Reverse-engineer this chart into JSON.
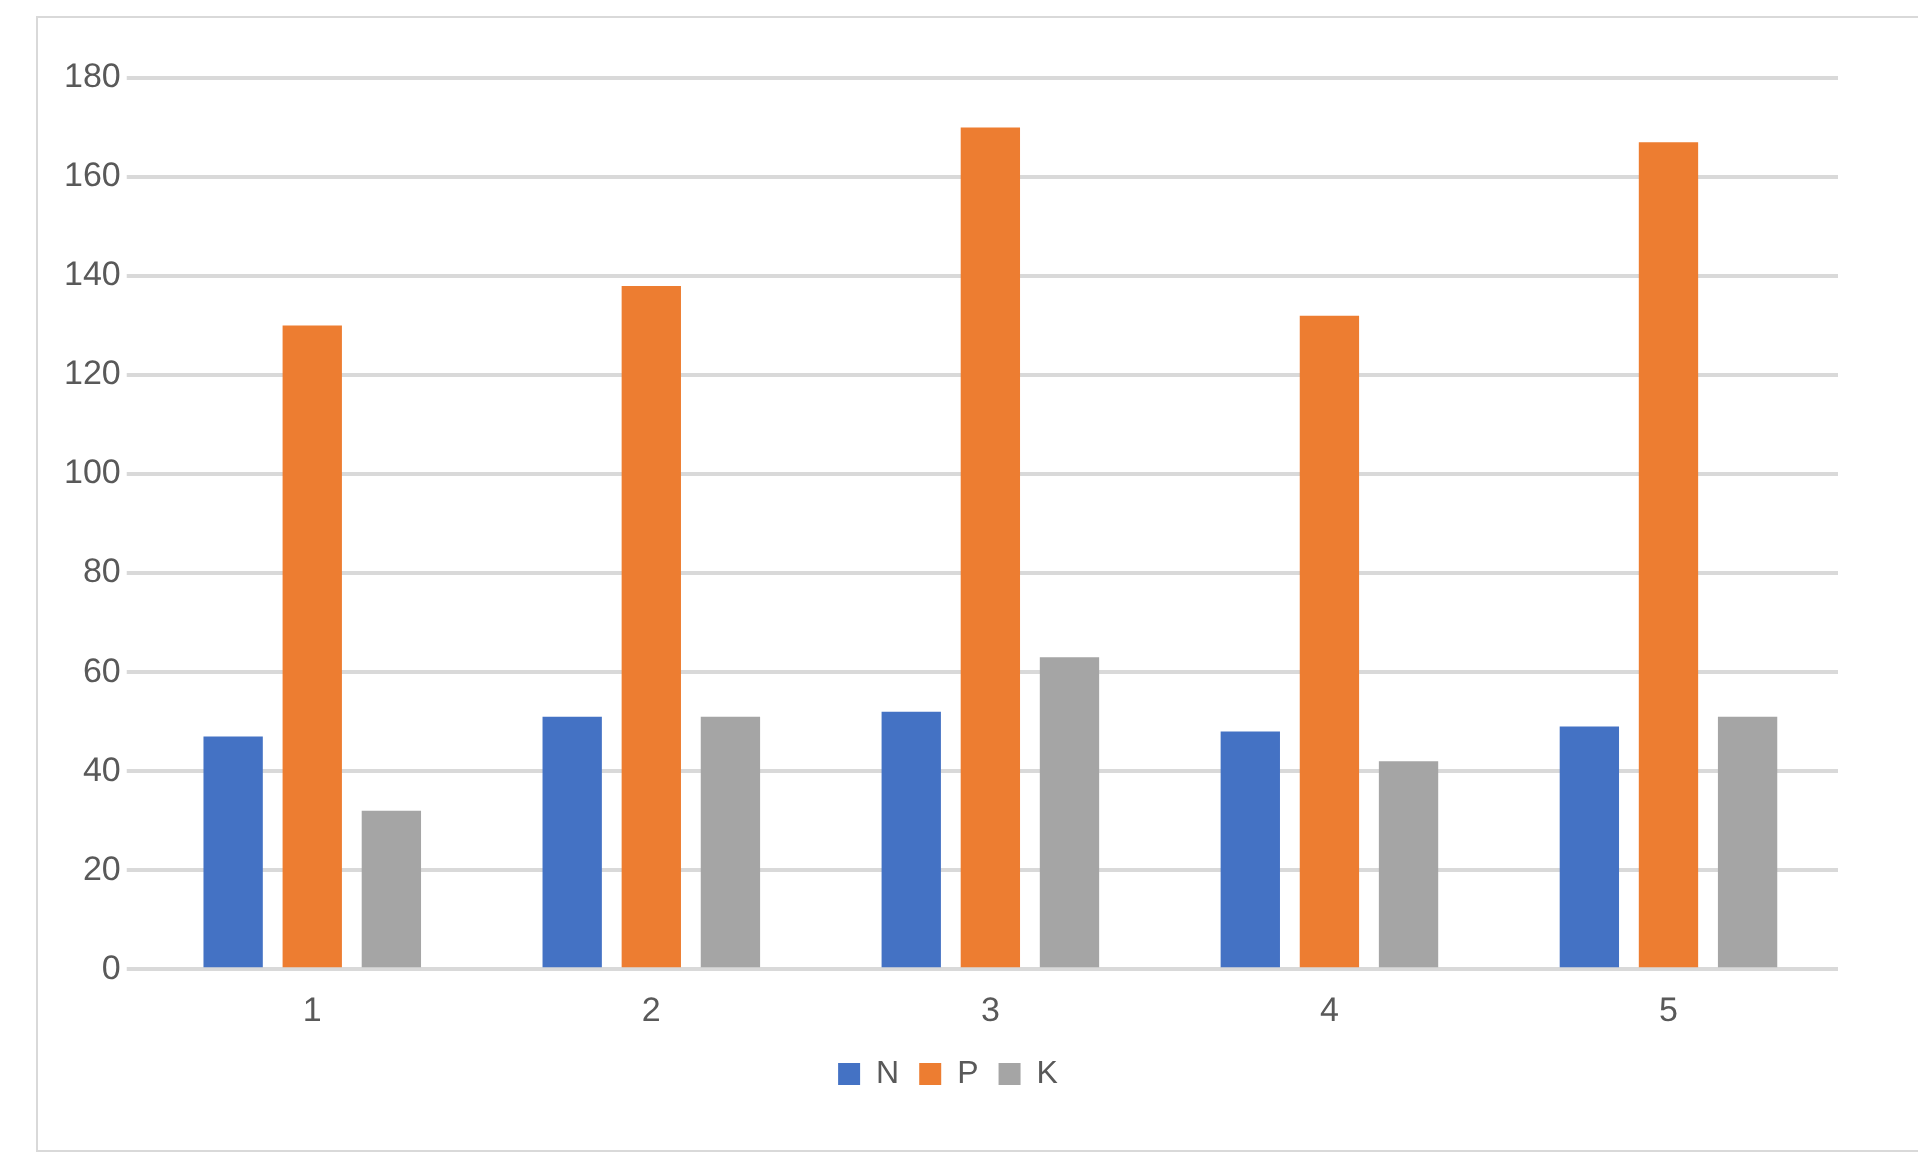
{
  "chart_data": {
    "type": "bar",
    "categories": [
      "1",
      "2",
      "3",
      "4",
      "5"
    ],
    "series": [
      {
        "name": "N",
        "color": "#4472c4",
        "values": [
          47,
          51,
          52,
          48,
          49
        ]
      },
      {
        "name": "P",
        "color": "#ed7d31",
        "values": [
          130,
          138,
          170,
          132,
          167
        ]
      },
      {
        "name": "K",
        "color": "#a5a5a5",
        "values": [
          32,
          51,
          63,
          42,
          51
        ]
      }
    ],
    "ylim": [
      0,
      180
    ],
    "yticks": [
      0,
      20,
      40,
      60,
      80,
      100,
      120,
      140,
      160,
      180
    ],
    "grid": "y",
    "legend": "bottom"
  }
}
